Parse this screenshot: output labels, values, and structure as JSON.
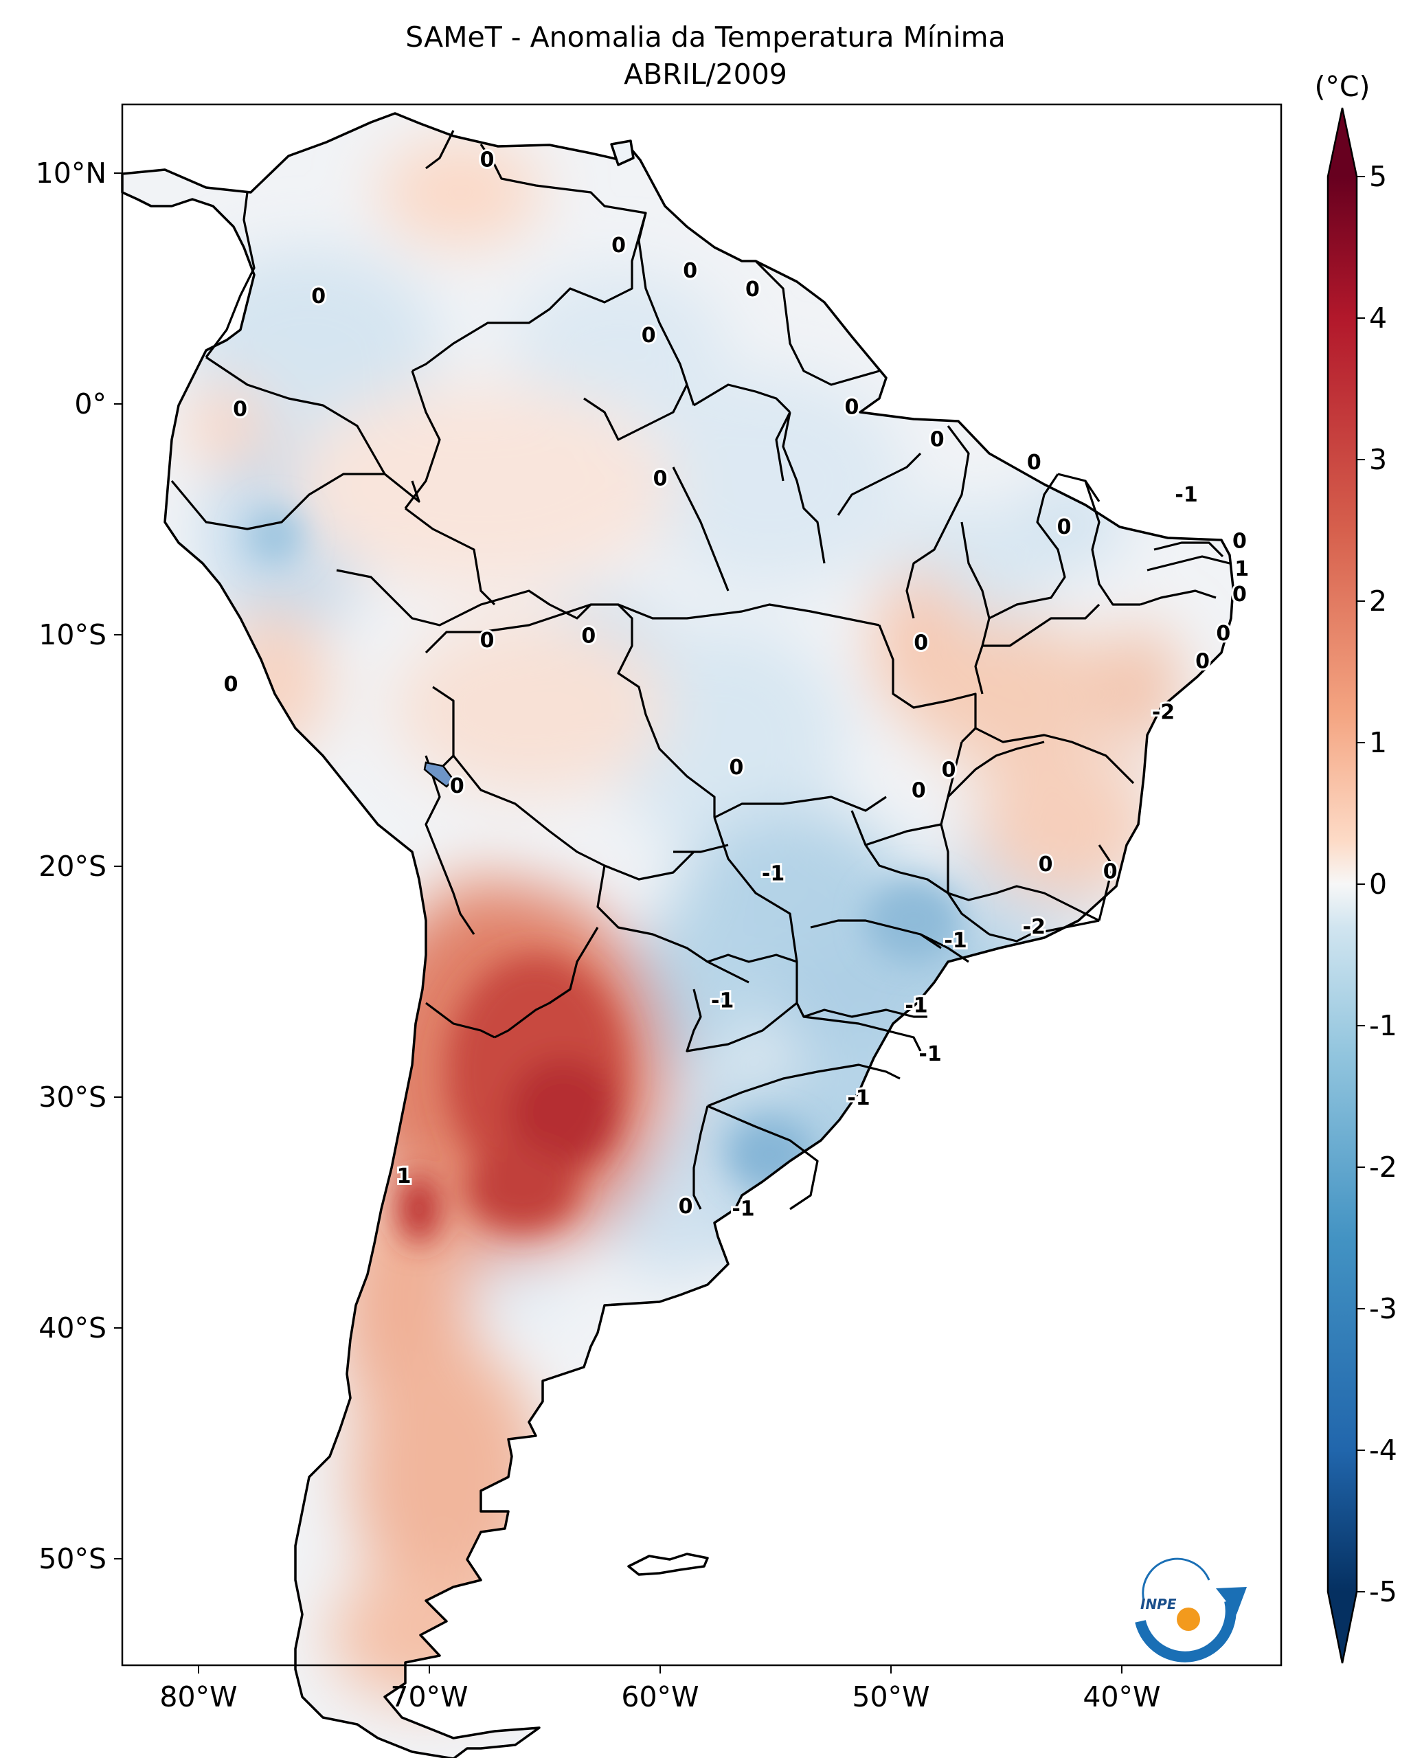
{
  "title_line1": "SAMeT - Anomalia da Temperatura Mínima",
  "title_line2": "ABRIL/2009",
  "colorbar": {
    "unit": "(°C)",
    "min": -5,
    "max": 5,
    "ticks": [
      "5",
      "4",
      "3",
      "2",
      "1",
      "0",
      "-1",
      "-2",
      "-3",
      "-4",
      "-5"
    ]
  },
  "axes": {
    "lat_labels": [
      "10°N",
      "0°",
      "10°S",
      "20°S",
      "30°S",
      "40°S",
      "50°S"
    ],
    "lon_labels": [
      "80°W",
      "70°W",
      "60°W",
      "50°W",
      "40°W"
    ]
  },
  "contour_labels": [
    {
      "text": "0",
      "lon": -67.5,
      "lat": 10.6
    },
    {
      "text": "0",
      "lon": -61.8,
      "lat": 6.9
    },
    {
      "text": "0",
      "lon": -58.7,
      "lat": 5.8
    },
    {
      "text": "0",
      "lon": -56.0,
      "lat": 5.0
    },
    {
      "text": "0",
      "lon": -74.8,
      "lat": 4.7
    },
    {
      "text": "0",
      "lon": -60.5,
      "lat": 3.0
    },
    {
      "text": "0",
      "lon": -78.2,
      "lat": -0.2
    },
    {
      "text": "0",
      "lon": -51.7,
      "lat": -0.1
    },
    {
      "text": "0",
      "lon": -48.0,
      "lat": -1.5
    },
    {
      "text": "0",
      "lon": -60.0,
      "lat": -3.2
    },
    {
      "text": "0",
      "lon": -43.8,
      "lat": -2.5
    },
    {
      "text": "-1",
      "lon": -37.2,
      "lat": -3.9
    },
    {
      "text": "0",
      "lon": -42.5,
      "lat": -5.3
    },
    {
      "text": "0",
      "lon": -34.9,
      "lat": -5.9
    },
    {
      "text": "1",
      "lon": -34.8,
      "lat": -7.1
    },
    {
      "text": "0",
      "lon": -34.9,
      "lat": -8.2
    },
    {
      "text": "0",
      "lon": -35.6,
      "lat": -9.9
    },
    {
      "text": "0",
      "lon": -36.5,
      "lat": -11.1
    },
    {
      "text": "0",
      "lon": -63.1,
      "lat": -10.0
    },
    {
      "text": "0",
      "lon": -67.5,
      "lat": -10.2
    },
    {
      "text": "0",
      "lon": -48.7,
      "lat": -10.3
    },
    {
      "text": "0",
      "lon": -78.6,
      "lat": -12.1
    },
    {
      "text": "-2",
      "lon": -38.2,
      "lat": -13.3
    },
    {
      "text": "0",
      "lon": -56.7,
      "lat": -15.7
    },
    {
      "text": "0",
      "lon": -47.5,
      "lat": -15.8
    },
    {
      "text": "0",
      "lon": -48.8,
      "lat": -16.7
    },
    {
      "text": "0",
      "lon": -68.8,
      "lat": -16.5
    },
    {
      "text": "-1",
      "lon": -55.1,
      "lat": -20.3
    },
    {
      "text": "0",
      "lon": -43.3,
      "lat": -19.9
    },
    {
      "text": "0",
      "lon": -40.5,
      "lat": -20.2
    },
    {
      "text": "-1",
      "lon": -47.2,
      "lat": -23.2
    },
    {
      "text": "-2",
      "lon": -43.8,
      "lat": -22.6
    },
    {
      "text": "-1",
      "lon": -57.3,
      "lat": -25.8
    },
    {
      "text": "-1",
      "lon": -48.9,
      "lat": -26.0
    },
    {
      "text": "-1",
      "lon": -48.3,
      "lat": -28.1
    },
    {
      "text": "-1",
      "lon": -51.4,
      "lat": -30.0
    },
    {
      "text": "1",
      "lon": -71.1,
      "lat": -33.4
    },
    {
      "text": "0",
      "lon": -58.9,
      "lat": -34.7
    },
    {
      "text": "-1",
      "lon": -56.4,
      "lat": -34.8
    }
  ],
  "logo_text": "INPE"
}
